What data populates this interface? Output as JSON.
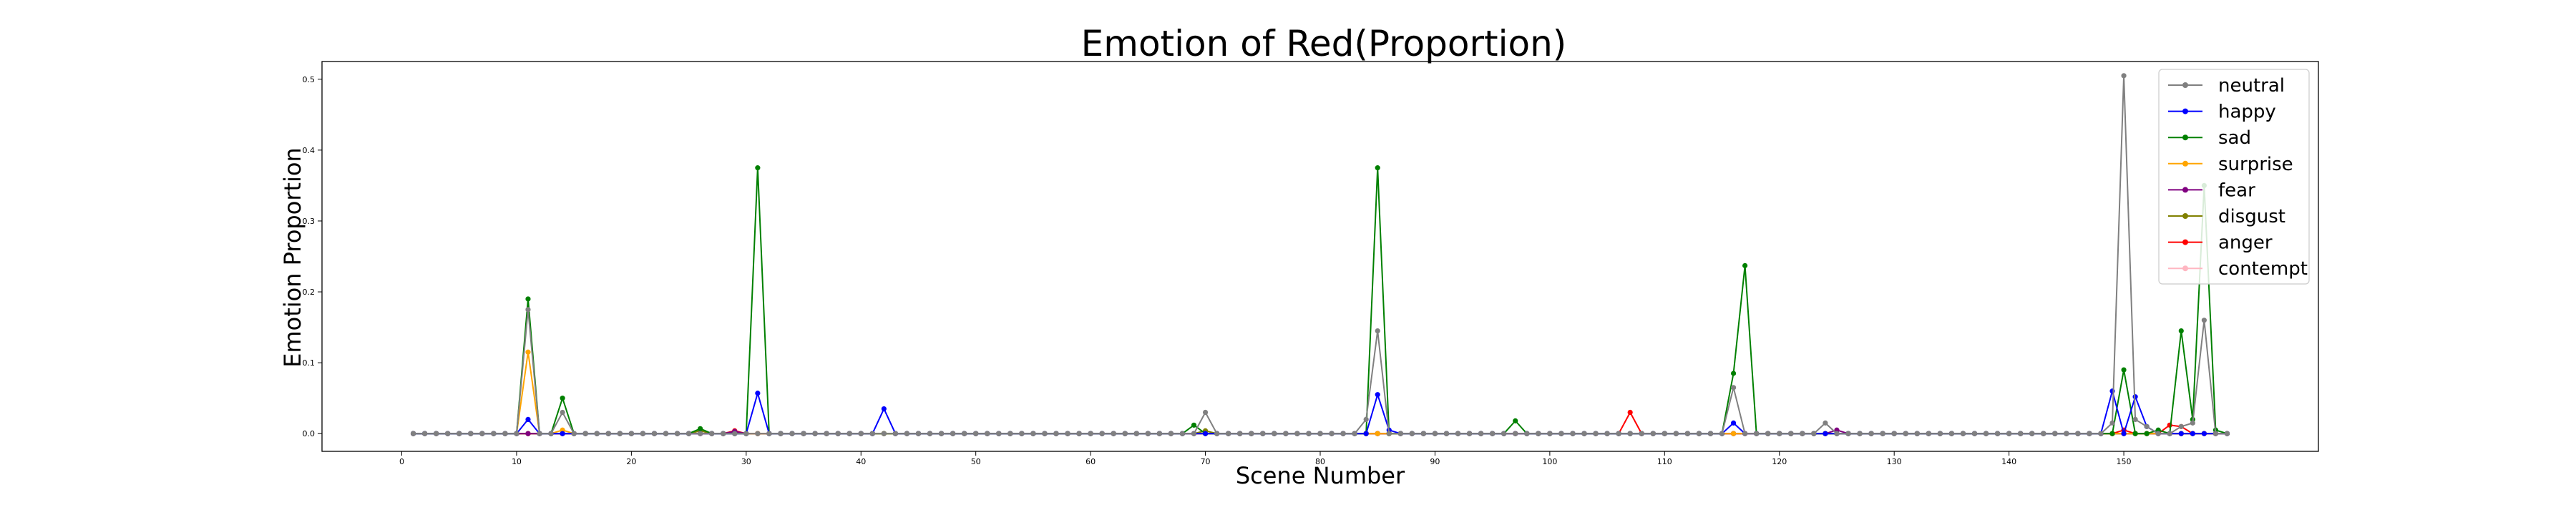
{
  "chart_data": {
    "type": "line",
    "title": "Emotion of Red(Proportion)",
    "xlabel": "Scene Number",
    "ylabel": "Emotion Proportion",
    "xlim": [
      -6.95,
      166.95
    ],
    "ylim": [
      -0.025,
      0.525
    ],
    "xticks": [
      0,
      10,
      20,
      30,
      40,
      50,
      60,
      70,
      80,
      90,
      100,
      110,
      120,
      130,
      140,
      150
    ],
    "yticks": [
      0.0,
      0.1,
      0.2,
      0.3,
      0.4,
      0.5
    ],
    "ytick_labels": [
      "0.0",
      "0.1",
      "0.2",
      "0.3",
      "0.4",
      "0.5"
    ],
    "legend_position": "top-right",
    "grid": false,
    "x_start": 1,
    "x_end": 159,
    "series": [
      {
        "name": "neutral",
        "color": "#808080",
        "marker": "circle",
        "points": [
          [
            10,
            0
          ],
          [
            11,
            0.175
          ],
          [
            12,
            0
          ],
          [
            13,
            0
          ],
          [
            14,
            0.03
          ],
          [
            15,
            0
          ],
          [
            69,
            0
          ],
          [
            70,
            0.03
          ],
          [
            71,
            0
          ],
          [
            83,
            0
          ],
          [
            84,
            0.02
          ],
          [
            85,
            0.145
          ],
          [
            86,
            0
          ],
          [
            115,
            0
          ],
          [
            116,
            0.065
          ],
          [
            117,
            0
          ],
          [
            123,
            0
          ],
          [
            124,
            0.015
          ],
          [
            125,
            0
          ],
          [
            148,
            0
          ],
          [
            149,
            0.015
          ],
          [
            150,
            0.505
          ],
          [
            151,
            0.02
          ],
          [
            152,
            0.01
          ],
          [
            153,
            0
          ],
          [
            154,
            0
          ],
          [
            155,
            0.01
          ],
          [
            156,
            0.015
          ],
          [
            157,
            0.16
          ],
          [
            158,
            0
          ]
        ]
      },
      {
        "name": "happy",
        "color": "#0000ff",
        "marker": "circle",
        "points": [
          [
            10,
            0
          ],
          [
            11,
            0.02
          ],
          [
            12,
            0
          ],
          [
            30,
            0
          ],
          [
            31,
            0.057
          ],
          [
            32,
            0
          ],
          [
            41,
            0
          ],
          [
            42,
            0.035
          ],
          [
            43,
            0
          ],
          [
            84,
            0
          ],
          [
            85,
            0.055
          ],
          [
            86,
            0.005
          ],
          [
            87,
            0
          ],
          [
            115,
            0
          ],
          [
            116,
            0.015
          ],
          [
            117,
            0
          ],
          [
            148,
            0
          ],
          [
            149,
            0.06
          ],
          [
            150,
            0
          ],
          [
            151,
            0.052
          ],
          [
            152,
            0.01
          ],
          [
            153,
            0
          ]
        ]
      },
      {
        "name": "sad",
        "color": "#008000",
        "marker": "circle",
        "points": [
          [
            10,
            0
          ],
          [
            11,
            0.19
          ],
          [
            12,
            0
          ],
          [
            13,
            0
          ],
          [
            14,
            0.05
          ],
          [
            15,
            0
          ],
          [
            25,
            0
          ],
          [
            26,
            0.007
          ],
          [
            27,
            0
          ],
          [
            30,
            0
          ],
          [
            31,
            0.375
          ],
          [
            32,
            0
          ],
          [
            68,
            0
          ],
          [
            69,
            0.012
          ],
          [
            70,
            0
          ],
          [
            84,
            0
          ],
          [
            85,
            0.375
          ],
          [
            86,
            0
          ],
          [
            96,
            0
          ],
          [
            97,
            0.018
          ],
          [
            98,
            0
          ],
          [
            115,
            0
          ],
          [
            116,
            0.085
          ],
          [
            117,
            0.237
          ],
          [
            118,
            0
          ],
          [
            149,
            0
          ],
          [
            150,
            0.09
          ],
          [
            151,
            0
          ],
          [
            152,
            0
          ],
          [
            153,
            0.005
          ],
          [
            154,
            0
          ],
          [
            155,
            0.145
          ],
          [
            156,
            0.02
          ],
          [
            157,
            0.35
          ],
          [
            158,
            0.005
          ],
          [
            159,
            0
          ]
        ]
      },
      {
        "name": "surprise",
        "color": "#ffa500",
        "marker": "circle",
        "points": [
          [
            10,
            0
          ],
          [
            11,
            0.115
          ],
          [
            12,
            0
          ],
          [
            13,
            0
          ],
          [
            14,
            0.005
          ],
          [
            15,
            0
          ]
        ]
      },
      {
        "name": "fear",
        "color": "#800080",
        "marker": "circle",
        "points": [
          [
            28,
            0
          ],
          [
            29,
            0.003
          ],
          [
            30,
            0
          ],
          [
            124,
            0
          ],
          [
            125,
            0.005
          ],
          [
            126,
            0
          ]
        ]
      },
      {
        "name": "disgust",
        "color": "#808000",
        "marker": "circle",
        "points": [
          [
            25,
            0
          ],
          [
            26,
            0.004
          ],
          [
            27,
            0
          ],
          [
            69,
            0
          ],
          [
            70,
            0.004
          ],
          [
            71,
            0
          ]
        ]
      },
      {
        "name": "anger",
        "color": "#ff0000",
        "marker": "circle",
        "points": [
          [
            28,
            0
          ],
          [
            29,
            0.004
          ],
          [
            30,
            0
          ],
          [
            106,
            0
          ],
          [
            107,
            0.03
          ],
          [
            108,
            0
          ],
          [
            149,
            0
          ],
          [
            150,
            0.005
          ],
          [
            151,
            0
          ],
          [
            153,
            0
          ],
          [
            154,
            0.012
          ],
          [
            155,
            0.01
          ],
          [
            156,
            0
          ]
        ]
      },
      {
        "name": "contempt",
        "color": "#ffb6c1",
        "marker": "circle",
        "points": []
      }
    ]
  }
}
